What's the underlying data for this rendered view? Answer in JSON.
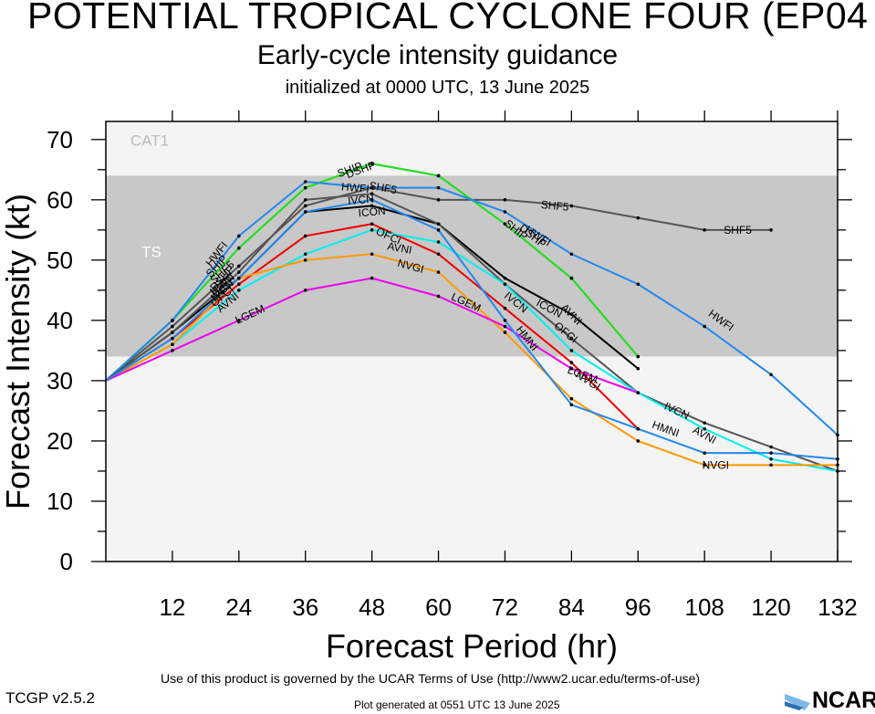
{
  "header": {
    "title": "POTENTIAL TROPICAL CYCLONE FOUR (EP04",
    "subtitle": "Early-cycle intensity guidance",
    "initialized": "initialized at 0000 UTC, 13 June 2025"
  },
  "footer": {
    "terms": "Use of this product is governed by the UCAR Terms of Use (http://www2.ucar.edu/terms-of-use)",
    "version": "TCGP v2.5.2",
    "generated": "Plot generated at 0551 UTC   13 June 2025",
    "logo_text": "NCAR"
  },
  "chart_data": {
    "type": "line",
    "xlabel": "Forecast Period (hr)",
    "ylabel": "Forecast Intensity (kt)",
    "xlim": [
      0,
      132
    ],
    "ylim": [
      0,
      73
    ],
    "xticks": [
      12,
      24,
      36,
      48,
      60,
      72,
      84,
      96,
      108,
      120,
      132
    ],
    "yticks": [
      0,
      10,
      20,
      30,
      40,
      50,
      60,
      70
    ],
    "bands": [
      {
        "label": "CAT1",
        "from": 64,
        "to": 73,
        "color": "#f4f4f4"
      },
      {
        "label": "TS",
        "from": 34,
        "to": 64,
        "color": "#c8c8c8"
      },
      {
        "label": "",
        "from": 0,
        "to": 34,
        "color": "#f4f4f4"
      }
    ],
    "series": [
      {
        "name": "SHF5",
        "color": "#555555",
        "x": [
          0,
          12,
          24,
          36,
          48,
          60,
          72,
          84,
          96,
          108,
          120
        ],
        "y": [
          30,
          39,
          49,
          59,
          62,
          60,
          60,
          59,
          57,
          55,
          55
        ],
        "labels": [
          {
            "x": 21,
            "y": 48
          },
          {
            "x": 50,
            "y": 62
          },
          {
            "x": 81,
            "y": 59
          },
          {
            "x": 114,
            "y": 55
          }
        ]
      },
      {
        "name": "DSHP",
        "color": "#22dd22",
        "x": [
          0,
          12,
          24,
          36,
          48,
          60,
          72,
          84,
          96
        ],
        "y": [
          30,
          40,
          52,
          62,
          66,
          64,
          56,
          47,
          34
        ],
        "labels": [
          {
            "x": 21,
            "y": 47
          },
          {
            "x": 46,
            "y": 65
          },
          {
            "x": 77,
            "y": 54
          }
        ]
      },
      {
        "name": "SHIP",
        "color": "#22dd22",
        "x": [
          0,
          12,
          24,
          36,
          48,
          60,
          72,
          84,
          96
        ],
        "y": [
          30,
          40,
          52,
          62,
          66,
          64,
          56,
          47,
          34
        ],
        "labels": [
          {
            "x": 20,
            "y": 49
          },
          {
            "x": 44,
            "y": 65
          },
          {
            "x": 74,
            "y": 55
          }
        ]
      },
      {
        "name": "HWFI",
        "color": "#2288ee",
        "x": [
          0,
          12,
          24,
          36,
          48,
          60,
          72,
          84,
          96,
          108,
          120,
          132
        ],
        "y": [
          30,
          40,
          54,
          63,
          62,
          62,
          58,
          51,
          46,
          39,
          31,
          21
        ],
        "labels": [
          {
            "x": 20,
            "y": 51
          },
          {
            "x": 45,
            "y": 62
          },
          {
            "x": 78,
            "y": 54
          },
          {
            "x": 111,
            "y": 40
          }
        ]
      },
      {
        "name": "ICON",
        "color": "#000000",
        "x": [
          0,
          12,
          24,
          36,
          48,
          60,
          72,
          84,
          96
        ],
        "y": [
          30,
          38,
          47,
          58,
          59,
          56,
          47,
          41,
          32
        ],
        "labels": [
          {
            "x": 21,
            "y": 46
          },
          {
            "x": 48,
            "y": 58
          },
          {
            "x": 80,
            "y": 42
          }
        ]
      },
      {
        "name": "IVCN",
        "color": "#555555",
        "x": [
          0,
          12,
          24,
          36,
          48,
          60,
          72,
          84,
          96,
          108,
          120,
          132
        ],
        "y": [
          30,
          38,
          48,
          60,
          61,
          56,
          46,
          37,
          28,
          23,
          19,
          15
        ],
        "labels": [
          {
            "x": 21,
            "y": 45
          },
          {
            "x": 46,
            "y": 60
          },
          {
            "x": 74,
            "y": 43
          },
          {
            "x": 103,
            "y": 25
          }
        ]
      },
      {
        "name": "OFCI",
        "color": "#ee0000",
        "x": [
          0,
          12,
          24,
          36,
          48,
          60,
          72,
          84,
          96
        ],
        "y": [
          30,
          37,
          46,
          54,
          56,
          51,
          42,
          33,
          22
        ],
        "labels": [
          {
            "x": 21,
            "y": 44
          },
          {
            "x": 51,
            "y": 54
          },
          {
            "x": 83,
            "y": 38
          }
        ]
      },
      {
        "name": "AVNI",
        "color": "#00eeee",
        "x": [
          0,
          12,
          24,
          36,
          48,
          60,
          72,
          84,
          96,
          108,
          120,
          132
        ],
        "y": [
          30,
          36,
          45,
          51,
          55,
          53,
          46,
          35,
          28,
          22,
          17,
          15
        ],
        "labels": [
          {
            "x": 22,
            "y": 43
          },
          {
            "x": 53,
            "y": 52
          },
          {
            "x": 84,
            "y": 41
          },
          {
            "x": 108,
            "y": 21
          }
        ]
      },
      {
        "name": "NVGI",
        "color": "#ff9900",
        "x": [
          0,
          12,
          24,
          36,
          48,
          60,
          72,
          84,
          96,
          108,
          120,
          132
        ],
        "y": [
          30,
          36,
          47,
          50,
          51,
          48,
          38,
          27,
          20,
          16,
          16,
          16
        ],
        "labels": [
          {
            "x": 21,
            "y": 45
          },
          {
            "x": 55,
            "y": 49
          },
          {
            "x": 87,
            "y": 30
          },
          {
            "x": 110,
            "y": 16
          }
        ]
      },
      {
        "name": "LGEM",
        "color": "#ee00ee",
        "x": [
          0,
          12,
          24,
          36,
          48,
          60,
          72,
          84,
          96
        ],
        "y": [
          30,
          35,
          40,
          45,
          47,
          44,
          39,
          32,
          28
        ],
        "labels": [
          {
            "x": 26,
            "y": 41
          },
          {
            "x": 65,
            "y": 43
          },
          {
            "x": 86,
            "y": 31
          }
        ]
      },
      {
        "name": "HMNI",
        "color": "#2288ee",
        "x": [
          0,
          12,
          24,
          36,
          48,
          60,
          72,
          84,
          96,
          108,
          120,
          132
        ],
        "y": [
          30,
          37,
          47,
          58,
          60,
          55,
          40,
          26,
          22,
          18,
          18,
          17
        ],
        "labels": [
          {
            "x": 21,
            "y": 46
          },
          {
            "x": 76,
            "y": 37
          },
          {
            "x": 101,
            "y": 22
          }
        ]
      }
    ]
  }
}
